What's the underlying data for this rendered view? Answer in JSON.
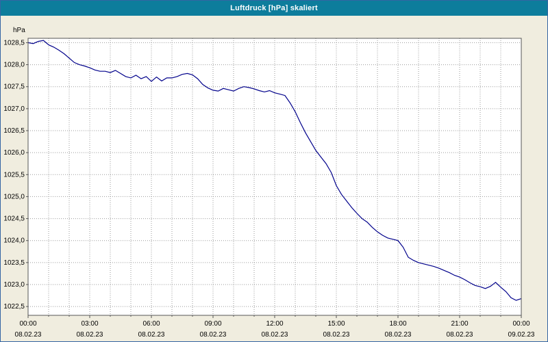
{
  "window": {
    "title": "Luftdruck [hPa] skaliert"
  },
  "colors": {
    "titlebar_bg": "#0d7d9c",
    "window_bg": "#f0eddf",
    "plot_bg": "#ffffff",
    "grid": "#9a9a9a",
    "plot_border": "#555555",
    "outer_border": "#3465a4",
    "line": "#00008b",
    "text": "#000000",
    "title_text": "#ffffff"
  },
  "chart_data": {
    "type": "line",
    "title": "Luftdruck [hPa] skaliert",
    "ylabel": "hPa",
    "xlabel": "",
    "grid": true,
    "legend_position": "none",
    "decimal_separator": ",",
    "xlim": [
      0,
      24
    ],
    "ylim": [
      1022.3,
      1028.6
    ],
    "x_grid_step_hours": 1,
    "y_ticks": [
      1028.5,
      1028.0,
      1027.5,
      1027.0,
      1026.5,
      1026.0,
      1025.5,
      1025.0,
      1024.5,
      1024.0,
      1023.5,
      1023.0,
      1022.5
    ],
    "x_ticks": [
      {
        "hour": 0,
        "time": "00:00",
        "date": "08.02.23"
      },
      {
        "hour": 3,
        "time": "03:00",
        "date": "08.02.23"
      },
      {
        "hour": 6,
        "time": "06:00",
        "date": "08.02.23"
      },
      {
        "hour": 9,
        "time": "09:00",
        "date": "08.02.23"
      },
      {
        "hour": 12,
        "time": "12:00",
        "date": "08.02.23"
      },
      {
        "hour": 15,
        "time": "15:00",
        "date": "08.02.23"
      },
      {
        "hour": 18,
        "time": "18:00",
        "date": "08.02.23"
      },
      {
        "hour": 21,
        "time": "21:00",
        "date": "08.02.23"
      },
      {
        "hour": 24,
        "time": "00:00",
        "date": "09.02.23"
      }
    ],
    "series": [
      {
        "name": "Luftdruck",
        "x": [
          0,
          0.25,
          0.5,
          0.75,
          1,
          1.25,
          1.5,
          1.75,
          2,
          2.25,
          2.5,
          2.75,
          3,
          3.25,
          3.5,
          3.75,
          4,
          4.25,
          4.5,
          4.75,
          5,
          5.25,
          5.5,
          5.75,
          6,
          6.25,
          6.5,
          6.75,
          7,
          7.25,
          7.5,
          7.75,
          8,
          8.25,
          8.5,
          8.75,
          9,
          9.25,
          9.5,
          9.75,
          10,
          10.25,
          10.5,
          10.75,
          11,
          11.25,
          11.5,
          11.75,
          12,
          12.25,
          12.5,
          12.75,
          13,
          13.25,
          13.5,
          13.75,
          14,
          14.25,
          14.5,
          14.75,
          15,
          15.25,
          15.5,
          15.75,
          16,
          16.25,
          16.5,
          16.75,
          17,
          17.25,
          17.5,
          17.75,
          18,
          18.25,
          18.5,
          18.75,
          19,
          19.25,
          19.5,
          19.75,
          20,
          20.25,
          20.5,
          20.75,
          21,
          21.25,
          21.5,
          21.75,
          22,
          22.25,
          22.5,
          22.75,
          23,
          23.25,
          23.5,
          23.75,
          24
        ],
        "y": [
          1028.5,
          1028.48,
          1028.53,
          1028.55,
          1028.45,
          1028.4,
          1028.33,
          1028.25,
          1028.15,
          1028.05,
          1028.0,
          1027.97,
          1027.93,
          1027.88,
          1027.85,
          1027.85,
          1027.82,
          1027.87,
          1027.8,
          1027.73,
          1027.7,
          1027.76,
          1027.68,
          1027.73,
          1027.62,
          1027.72,
          1027.63,
          1027.7,
          1027.7,
          1027.73,
          1027.78,
          1027.8,
          1027.77,
          1027.68,
          1027.55,
          1027.47,
          1027.42,
          1027.4,
          1027.46,
          1027.43,
          1027.4,
          1027.46,
          1027.5,
          1027.48,
          1027.45,
          1027.41,
          1027.38,
          1027.41,
          1027.36,
          1027.33,
          1027.3,
          1027.13,
          1026.93,
          1026.68,
          1026.45,
          1026.25,
          1026.05,
          1025.9,
          1025.75,
          1025.55,
          1025.25,
          1025.05,
          1024.9,
          1024.75,
          1024.62,
          1024.5,
          1024.42,
          1024.3,
          1024.2,
          1024.12,
          1024.06,
          1024.03,
          1024.0,
          1023.85,
          1023.62,
          1023.55,
          1023.5,
          1023.47,
          1023.44,
          1023.41,
          1023.37,
          1023.32,
          1023.27,
          1023.21,
          1023.17,
          1023.11,
          1023.04,
          1022.98,
          1022.95,
          1022.91,
          1022.96,
          1023.05,
          1022.94,
          1022.84,
          1022.7,
          1022.64,
          1022.68
        ]
      }
    ]
  }
}
